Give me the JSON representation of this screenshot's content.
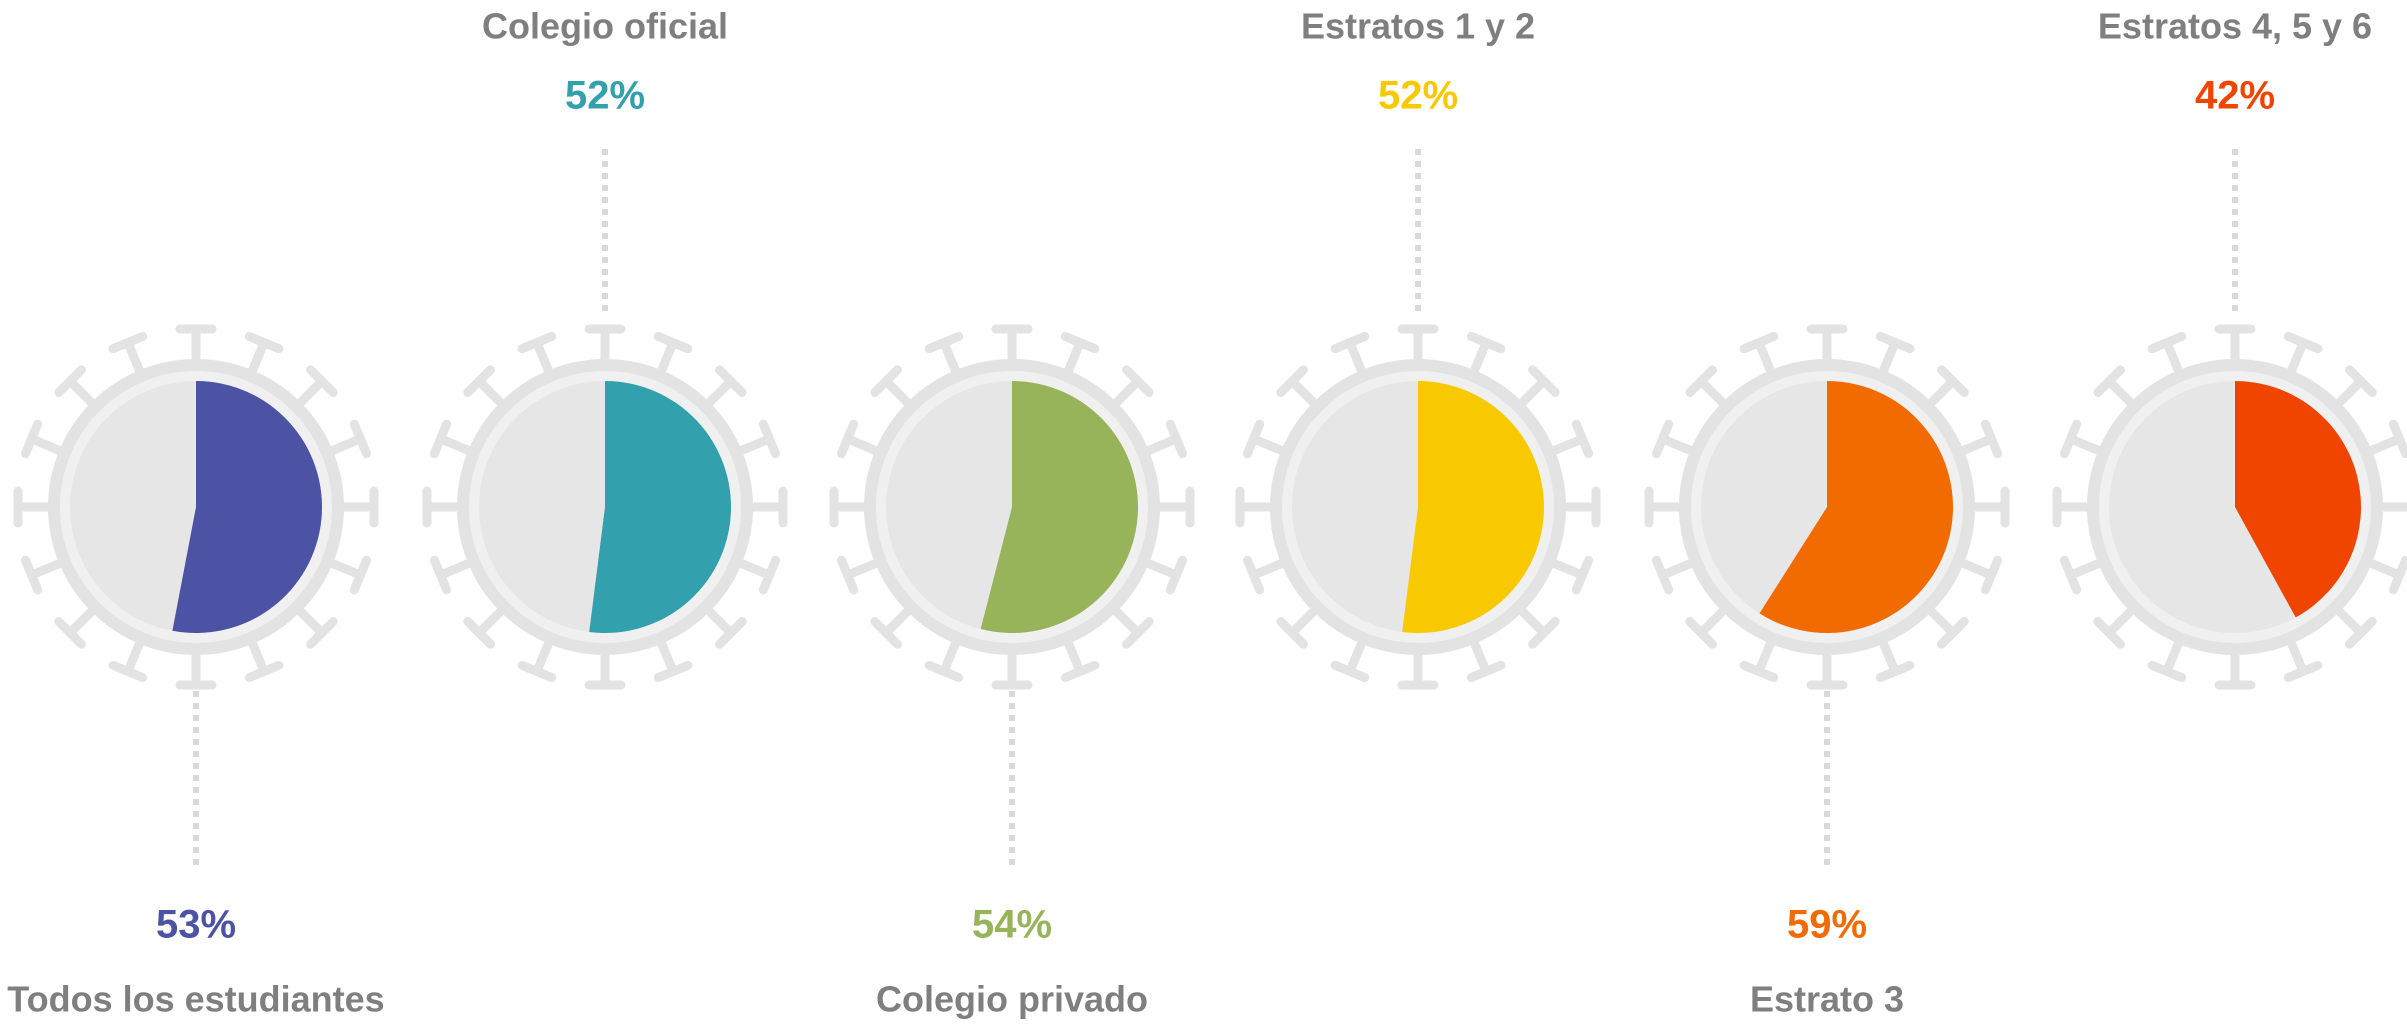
{
  "chart_data": [
    {
      "type": "pie",
      "title": "Todos los estudiantes",
      "values": [
        53
      ],
      "value_labels": [
        "53%"
      ],
      "color": "#4c53a4"
    },
    {
      "type": "pie",
      "title": "Colegio oficial",
      "values": [
        52
      ],
      "value_labels": [
        "52%"
      ],
      "color": "#33a0ae"
    },
    {
      "type": "pie",
      "title": "Colegio privado",
      "values": [
        54
      ],
      "value_labels": [
        "54%"
      ],
      "color": "#98b45a"
    },
    {
      "type": "pie",
      "title": "Estratos 1 y 2",
      "values": [
        52
      ],
      "value_labels": [
        "52%"
      ],
      "color": "#f9c900"
    },
    {
      "type": "pie",
      "title": "Estrato 3",
      "values": [
        59
      ],
      "value_labels": [
        "59%"
      ],
      "color": "#f26b00"
    },
    {
      "type": "pie",
      "title": "Estratos 4, 5 y 6",
      "values": [
        42
      ],
      "value_labels": [
        "42%"
      ],
      "color": "#f04500"
    }
  ]
}
